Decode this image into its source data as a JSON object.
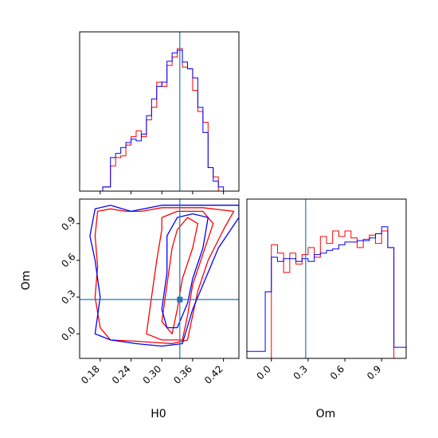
{
  "chart_data": {
    "type": "corner",
    "parameters": [
      "H0",
      "Om"
    ],
    "truth": {
      "H0": 0.335,
      "Om": 0.28
    },
    "series": [
      {
        "name": "",
        "color": "#ff0000"
      },
      {
        "name": "",
        "color": "#0000ff"
      }
    ],
    "truth_color": "#1f77b4",
    "panels": {
      "hist_H0": {
        "xlim": [
          0.14,
          0.45
        ],
        "xticks": [
          "0.18",
          "0.24",
          "0.30",
          "0.36",
          "0.42"
        ],
        "bin_edges": [
          0.14,
          0.155,
          0.17,
          0.185,
          0.2,
          0.21,
          0.22,
          0.23,
          0.24,
          0.25,
          0.26,
          0.27,
          0.28,
          0.29,
          0.3,
          0.31,
          0.32,
          0.33,
          0.34,
          0.35,
          0.36,
          0.37,
          0.38,
          0.39,
          0.4,
          0.41,
          0.42,
          0.45
        ],
        "red_counts": [
          0,
          0,
          0,
          5,
          30,
          40,
          42,
          55,
          65,
          72,
          65,
          85,
          100,
          130,
          125,
          150,
          160,
          170,
          148,
          146,
          120,
          95,
          82,
          28,
          17,
          0,
          0
        ],
        "blue_counts": [
          0,
          0,
          0,
          5,
          40,
          45,
          52,
          58,
          62,
          60,
          68,
          90,
          110,
          125,
          130,
          155,
          165,
          168,
          154,
          146,
          135,
          100,
          70,
          28,
          12,
          5,
          0
        ],
        "ymax": 190
      },
      "hist_Om": {
        "xlim": [
          -0.2,
          1.1
        ],
        "xticks": [
          "0.0",
          "0.3",
          "0.6",
          "0.9"
        ],
        "bin_edges": [
          -0.2,
          -0.05,
          0.0,
          0.05,
          0.1,
          0.15,
          0.2,
          0.25,
          0.3,
          0.35,
          0.4,
          0.45,
          0.5,
          0.55,
          0.6,
          0.65,
          0.7,
          0.75,
          0.8,
          0.85,
          0.9,
          0.95,
          1.0,
          1.05,
          1.1
        ],
        "red_counts": [
          0,
          0,
          0.82,
          0.76,
          0.62,
          0.76,
          0.68,
          0.75,
          0.8,
          0.73,
          0.88,
          0.83,
          0.92,
          0.88,
          0.92,
          0.87,
          0.8,
          0.86,
          0.89,
          0.83,
          0.92,
          0.8,
          0,
          0
        ],
        "blue_counts": [
          0.05,
          0.48,
          0.73,
          0.7,
          0.72,
          0.72,
          0.7,
          0.72,
          0.7,
          0.75,
          0.76,
          0.78,
          0.79,
          0.82,
          0.84,
          0.84,
          0.85,
          0.85,
          0.87,
          0.9,
          0.95,
          0.8,
          0.08,
          0.08
        ],
        "ymax": 1.15
      },
      "scatter_H0_Om": {
        "xlim": [
          0.14,
          0.45
        ],
        "ylim": [
          -0.2,
          1.1
        ],
        "xticks": [
          "0.18",
          "0.24",
          "0.30",
          "0.36",
          "0.42"
        ],
        "yticks": [
          "0.0",
          "0.3",
          "0.6",
          "0.9"
        ],
        "xlabel": "H0",
        "ylabel": "Om",
        "contours": {
          "red": [
            [
              [
                0.17,
                0.3
              ],
              [
                0.175,
                0.55
              ],
              [
                0.17,
                0.8
              ],
              [
                0.175,
                1.0
              ],
              [
                0.2,
                1.02
              ],
              [
                0.23,
                1.0
              ],
              [
                0.26,
                1.0
              ],
              [
                0.3,
                1.03
              ],
              [
                0.38,
                1.03
              ],
              [
                0.44,
                1.0
              ],
              [
                0.42,
                0.85
              ],
              [
                0.39,
                0.6
              ],
              [
                0.37,
                0.35
              ],
              [
                0.36,
                0.15
              ],
              [
                0.35,
                -0.05
              ],
              [
                0.32,
                -0.08
              ],
              [
                0.25,
                -0.06
              ],
              [
                0.2,
                -0.05
              ],
              [
                0.18,
                0.05
              ],
              [
                0.17,
                0.3
              ]
            ],
            [
              [
                0.27,
                0.0
              ],
              [
                0.28,
                0.3
              ],
              [
                0.29,
                0.6
              ],
              [
                0.3,
                0.85
              ],
              [
                0.3,
                0.95
              ],
              [
                0.33,
                1.0
              ],
              [
                0.38,
                1.0
              ],
              [
                0.4,
                0.9
              ],
              [
                0.38,
                0.65
              ],
              [
                0.36,
                0.4
              ],
              [
                0.35,
                0.15
              ],
              [
                0.34,
                -0.05
              ],
              [
                0.3,
                -0.05
              ],
              [
                0.27,
                0.0
              ]
            ],
            [
              [
                0.3,
                0.1
              ],
              [
                0.31,
                0.4
              ],
              [
                0.32,
                0.7
              ],
              [
                0.33,
                0.85
              ],
              [
                0.35,
                0.95
              ],
              [
                0.37,
                0.9
              ],
              [
                0.36,
                0.7
              ],
              [
                0.34,
                0.45
              ],
              [
                0.33,
                0.2
              ],
              [
                0.32,
                0.0
              ],
              [
                0.3,
                0.1
              ]
            ]
          ],
          "blue": [
            [
              [
                0.17,
                0.6
              ],
              [
                0.16,
                0.8
              ],
              [
                0.17,
                1.02
              ],
              [
                0.2,
                1.05
              ],
              [
                0.24,
                1.0
              ],
              [
                0.3,
                1.05
              ],
              [
                0.38,
                1.05
              ],
              [
                0.45,
                1.05
              ],
              [
                0.45,
                0.95
              ],
              [
                0.41,
                0.7
              ],
              [
                0.38,
                0.4
              ],
              [
                0.36,
                0.2
              ],
              [
                0.34,
                -0.08
              ],
              [
                0.3,
                -0.1
              ],
              [
                0.25,
                -0.08
              ],
              [
                0.2,
                -0.05
              ],
              [
                0.17,
                0.0
              ],
              [
                0.18,
                0.3
              ],
              [
                0.17,
                0.6
              ]
            ],
            [
              [
                0.3,
                0.2
              ],
              [
                0.31,
                0.5
              ],
              [
                0.31,
                0.8
              ],
              [
                0.33,
                0.95
              ],
              [
                0.36,
                0.98
              ],
              [
                0.39,
                0.95
              ],
              [
                0.38,
                0.7
              ],
              [
                0.36,
                0.45
              ],
              [
                0.35,
                0.25
              ],
              [
                0.33,
                0.05
              ],
              [
                0.31,
                0.05
              ],
              [
                0.3,
                0.2
              ]
            ]
          ]
        }
      }
    }
  }
}
